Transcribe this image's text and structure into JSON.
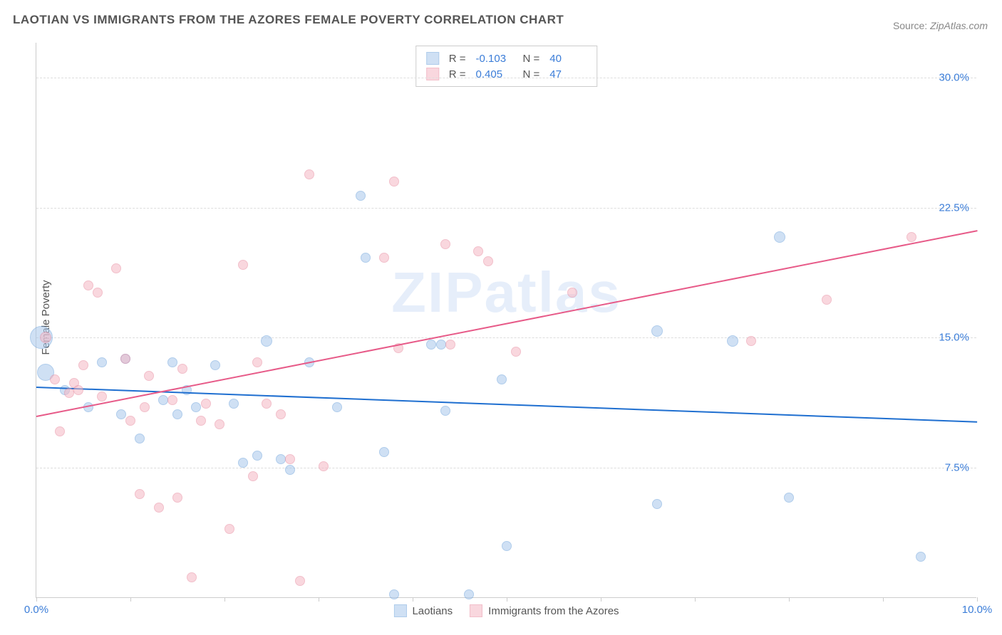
{
  "title": "LAOTIAN VS IMMIGRANTS FROM THE AZORES FEMALE POVERTY CORRELATION CHART",
  "source_label": "Source:",
  "source_value": "ZipAtlas.com",
  "watermark": "ZIPatlas",
  "ylabel": "Female Poverty",
  "chart": {
    "type": "scatter",
    "xlim": [
      0,
      10
    ],
    "ylim": [
      0,
      32
    ],
    "xticks": [
      0,
      1,
      2,
      3,
      4,
      5,
      6,
      7,
      8,
      9,
      10
    ],
    "xtick_labels": {
      "0": "0.0%",
      "10": "10.0%"
    },
    "yticks": [
      7.5,
      15.0,
      22.5,
      30.0
    ],
    "ytick_labels": [
      "7.5%",
      "15.0%",
      "22.5%",
      "30.0%"
    ],
    "grid_color": "#dddddd",
    "axis_color": "#cccccc",
    "tick_label_color": "#3b7dd8",
    "background": "#ffffff"
  },
  "series": [
    {
      "name": "Laotians",
      "fill": "#a9c8ec",
      "stroke": "#6fa3db",
      "fill_opacity": 0.55,
      "r_label": "R =",
      "r_value": "-0.103",
      "n_label": "N =",
      "n_value": "40",
      "trend": {
        "y_at_x0": 12.2,
        "y_at_x10": 10.2,
        "color": "#1f6fd0",
        "width": 2
      },
      "points": [
        {
          "x": 0.05,
          "y": 15.0,
          "r": 16
        },
        {
          "x": 0.1,
          "y": 13.0,
          "r": 12
        },
        {
          "x": 0.3,
          "y": 12.0,
          "r": 7
        },
        {
          "x": 0.55,
          "y": 11.0,
          "r": 7
        },
        {
          "x": 0.7,
          "y": 13.6,
          "r": 7
        },
        {
          "x": 0.9,
          "y": 10.6,
          "r": 7
        },
        {
          "x": 0.95,
          "y": 13.8,
          "r": 7
        },
        {
          "x": 1.1,
          "y": 9.2,
          "r": 7
        },
        {
          "x": 1.35,
          "y": 11.4,
          "r": 7
        },
        {
          "x": 1.45,
          "y": 13.6,
          "r": 7
        },
        {
          "x": 1.5,
          "y": 10.6,
          "r": 7
        },
        {
          "x": 1.6,
          "y": 12.0,
          "r": 7
        },
        {
          "x": 1.7,
          "y": 11.0,
          "r": 7
        },
        {
          "x": 1.9,
          "y": 13.4,
          "r": 7
        },
        {
          "x": 2.1,
          "y": 11.2,
          "r": 7
        },
        {
          "x": 2.2,
          "y": 7.8,
          "r": 7
        },
        {
          "x": 2.35,
          "y": 8.2,
          "r": 7
        },
        {
          "x": 2.45,
          "y": 14.8,
          "r": 8
        },
        {
          "x": 2.6,
          "y": 8.0,
          "r": 7
        },
        {
          "x": 2.7,
          "y": 7.4,
          "r": 7
        },
        {
          "x": 2.9,
          "y": 13.6,
          "r": 7
        },
        {
          "x": 3.2,
          "y": 11.0,
          "r": 7
        },
        {
          "x": 3.45,
          "y": 23.2,
          "r": 7
        },
        {
          "x": 3.5,
          "y": 19.6,
          "r": 7
        },
        {
          "x": 3.7,
          "y": 8.4,
          "r": 7
        },
        {
          "x": 3.8,
          "y": 0.2,
          "r": 7
        },
        {
          "x": 4.2,
          "y": 14.6,
          "r": 7
        },
        {
          "x": 4.3,
          "y": 14.6,
          "r": 7
        },
        {
          "x": 4.35,
          "y": 10.8,
          "r": 7
        },
        {
          "x": 4.6,
          "y": 0.2,
          "r": 7
        },
        {
          "x": 4.95,
          "y": 12.6,
          "r": 7
        },
        {
          "x": 5.0,
          "y": 3.0,
          "r": 7
        },
        {
          "x": 6.6,
          "y": 15.4,
          "r": 8
        },
        {
          "x": 6.6,
          "y": 5.4,
          "r": 7
        },
        {
          "x": 7.4,
          "y": 14.8,
          "r": 8
        },
        {
          "x": 7.9,
          "y": 20.8,
          "r": 8
        },
        {
          "x": 8.0,
          "y": 5.8,
          "r": 7
        },
        {
          "x": 9.4,
          "y": 2.4,
          "r": 7
        }
      ]
    },
    {
      "name": "Immigrants from the Azores",
      "fill": "#f5b8c4",
      "stroke": "#e88ba0",
      "fill_opacity": 0.55,
      "r_label": "R =",
      "r_value": "0.405",
      "n_label": "N =",
      "n_value": "47",
      "trend": {
        "y_at_x0": 10.5,
        "y_at_x10": 21.2,
        "color": "#e75a88",
        "width": 2
      },
      "points": [
        {
          "x": 0.1,
          "y": 15.0,
          "r": 8
        },
        {
          "x": 0.2,
          "y": 12.6,
          "r": 7
        },
        {
          "x": 0.25,
          "y": 9.6,
          "r": 7
        },
        {
          "x": 0.35,
          "y": 11.8,
          "r": 7
        },
        {
          "x": 0.4,
          "y": 12.4,
          "r": 7
        },
        {
          "x": 0.45,
          "y": 12.0,
          "r": 7
        },
        {
          "x": 0.5,
          "y": 13.4,
          "r": 7
        },
        {
          "x": 0.55,
          "y": 18.0,
          "r": 7
        },
        {
          "x": 0.65,
          "y": 17.6,
          "r": 7
        },
        {
          "x": 0.7,
          "y": 11.6,
          "r": 7
        },
        {
          "x": 0.85,
          "y": 19.0,
          "r": 7
        },
        {
          "x": 0.95,
          "y": 13.8,
          "r": 7
        },
        {
          "x": 1.0,
          "y": 10.2,
          "r": 7
        },
        {
          "x": 1.1,
          "y": 6.0,
          "r": 7
        },
        {
          "x": 1.15,
          "y": 11.0,
          "r": 7
        },
        {
          "x": 1.2,
          "y": 12.8,
          "r": 7
        },
        {
          "x": 1.3,
          "y": 5.2,
          "r": 7
        },
        {
          "x": 1.45,
          "y": 11.4,
          "r": 7
        },
        {
          "x": 1.5,
          "y": 5.8,
          "r": 7
        },
        {
          "x": 1.55,
          "y": 13.2,
          "r": 7
        },
        {
          "x": 1.65,
          "y": 1.2,
          "r": 7
        },
        {
          "x": 1.75,
          "y": 10.2,
          "r": 7
        },
        {
          "x": 1.8,
          "y": 11.2,
          "r": 7
        },
        {
          "x": 1.95,
          "y": 10.0,
          "r": 7
        },
        {
          "x": 2.05,
          "y": 4.0,
          "r": 7
        },
        {
          "x": 2.2,
          "y": 19.2,
          "r": 7
        },
        {
          "x": 2.3,
          "y": 7.0,
          "r": 7
        },
        {
          "x": 2.35,
          "y": 13.6,
          "r": 7
        },
        {
          "x": 2.45,
          "y": 11.2,
          "r": 7
        },
        {
          "x": 2.6,
          "y": 10.6,
          "r": 7
        },
        {
          "x": 2.7,
          "y": 8.0,
          "r": 7
        },
        {
          "x": 2.8,
          "y": 1.0,
          "r": 7
        },
        {
          "x": 2.9,
          "y": 24.4,
          "r": 7
        },
        {
          "x": 3.05,
          "y": 7.6,
          "r": 7
        },
        {
          "x": 3.7,
          "y": 19.6,
          "r": 7
        },
        {
          "x": 3.8,
          "y": 24.0,
          "r": 7
        },
        {
          "x": 3.85,
          "y": 14.4,
          "r": 7
        },
        {
          "x": 4.35,
          "y": 20.4,
          "r": 7
        },
        {
          "x": 4.4,
          "y": 14.6,
          "r": 7
        },
        {
          "x": 4.7,
          "y": 20.0,
          "r": 7
        },
        {
          "x": 4.8,
          "y": 19.4,
          "r": 7
        },
        {
          "x": 5.1,
          "y": 14.2,
          "r": 7
        },
        {
          "x": 5.7,
          "y": 17.6,
          "r": 7
        },
        {
          "x": 7.6,
          "y": 14.8,
          "r": 7
        },
        {
          "x": 8.4,
          "y": 17.2,
          "r": 7
        },
        {
          "x": 9.3,
          "y": 20.8,
          "r": 7
        }
      ]
    }
  ]
}
